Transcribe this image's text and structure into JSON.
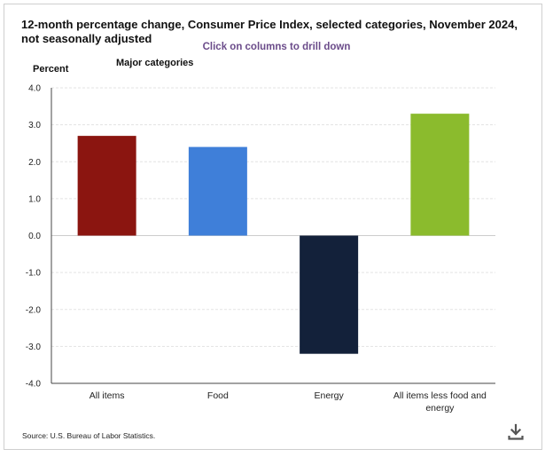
{
  "header": {
    "title": "12-month percentage change, Consumer Price Index, selected categories, November 2024, not seasonally adjusted",
    "subtitle": "Click on columns to drill down",
    "group_label": "Major categories"
  },
  "footer": {
    "source": "Source: U.S. Bureau of Labor Statistics."
  },
  "icons": {
    "download": "download-icon"
  },
  "chart_data": {
    "type": "bar",
    "title": "12-month percentage change, Consumer Price Index, selected categories, November 2024, not seasonally adjusted",
    "subtitle": "Click on columns to drill down",
    "xlabel": "",
    "ylabel": "Percent",
    "ylim": [
      -4.0,
      4.0
    ],
    "yticks": [
      "4.0",
      "3.0",
      "2.0",
      "1.0",
      "0.0",
      "-1.0",
      "-2.0",
      "-3.0",
      "-4.0"
    ],
    "ytick_values": [
      4,
      3,
      2,
      1,
      0,
      -1,
      -2,
      -3,
      -4
    ],
    "grid": true,
    "categories": [
      [
        "All items"
      ],
      [
        "Food"
      ],
      [
        "Energy"
      ],
      [
        "All items less food and",
        "energy"
      ]
    ],
    "values": [
      2.7,
      2.4,
      -3.2,
      3.3
    ],
    "colors": [
      "#8b1510",
      "#3f7fd9",
      "#13213a",
      "#8bbb2d"
    ]
  }
}
